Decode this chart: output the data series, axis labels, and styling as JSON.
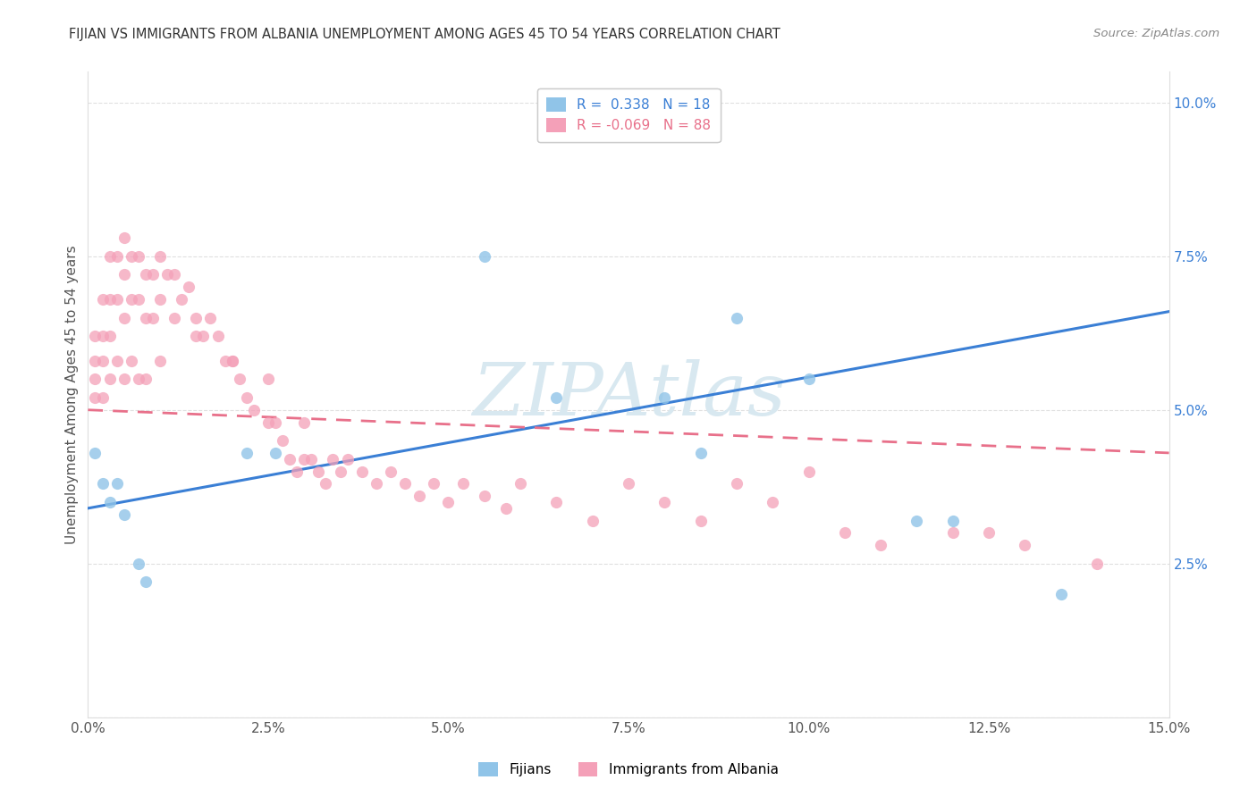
{
  "title": "FIJIAN VS IMMIGRANTS FROM ALBANIA UNEMPLOYMENT AMONG AGES 45 TO 54 YEARS CORRELATION CHART",
  "source": "Source: ZipAtlas.com",
  "ylabel": "Unemployment Among Ages 45 to 54 years",
  "legend_label_1": "Fijians",
  "legend_label_2": "Immigrants from Albania",
  "R1": 0.338,
  "N1": 18,
  "R2": -0.069,
  "N2": 88,
  "color1": "#90c4e8",
  "color2": "#f4a0b8",
  "trendline1_color": "#3a7fd5",
  "trendline2_color": "#e8708a",
  "xlim": [
    0.0,
    0.15
  ],
  "ylim": [
    0.0,
    0.105
  ],
  "xtick_positions": [
    0.0,
    0.025,
    0.05,
    0.075,
    0.1,
    0.125,
    0.15
  ],
  "xticklabels": [
    "0.0%",
    "2.5%",
    "5.0%",
    "7.5%",
    "10.0%",
    "12.5%",
    "15.0%"
  ],
  "ytick_positions": [
    0.0,
    0.025,
    0.05,
    0.075,
    0.1
  ],
  "ytick_labels": [
    "",
    "2.5%",
    "5.0%",
    "7.5%",
    "10.0%"
  ],
  "fijian_x": [
    0.001,
    0.002,
    0.003,
    0.004,
    0.005,
    0.007,
    0.008,
    0.022,
    0.026,
    0.055,
    0.065,
    0.08,
    0.085,
    0.09,
    0.1,
    0.115,
    0.12,
    0.135
  ],
  "fijian_y": [
    0.043,
    0.038,
    0.035,
    0.038,
    0.033,
    0.025,
    0.022,
    0.043,
    0.043,
    0.075,
    0.052,
    0.052,
    0.043,
    0.065,
    0.055,
    0.032,
    0.032,
    0.02
  ],
  "albania_x": [
    0.001,
    0.001,
    0.001,
    0.001,
    0.002,
    0.002,
    0.002,
    0.002,
    0.003,
    0.003,
    0.003,
    0.003,
    0.004,
    0.004,
    0.004,
    0.005,
    0.005,
    0.005,
    0.005,
    0.006,
    0.006,
    0.006,
    0.007,
    0.007,
    0.007,
    0.008,
    0.008,
    0.008,
    0.009,
    0.009,
    0.01,
    0.01,
    0.01,
    0.011,
    0.012,
    0.012,
    0.013,
    0.014,
    0.015,
    0.016,
    0.017,
    0.018,
    0.019,
    0.02,
    0.021,
    0.022,
    0.023,
    0.025,
    0.025,
    0.026,
    0.027,
    0.028,
    0.029,
    0.03,
    0.03,
    0.031,
    0.032,
    0.033,
    0.034,
    0.035,
    0.036,
    0.038,
    0.04,
    0.042,
    0.044,
    0.046,
    0.048,
    0.05,
    0.052,
    0.055,
    0.058,
    0.06,
    0.065,
    0.07,
    0.075,
    0.08,
    0.085,
    0.09,
    0.095,
    0.1,
    0.105,
    0.11,
    0.12,
    0.125,
    0.13,
    0.14,
    0.015,
    0.02
  ],
  "albania_y": [
    0.062,
    0.058,
    0.055,
    0.052,
    0.068,
    0.062,
    0.058,
    0.052,
    0.075,
    0.068,
    0.062,
    0.055,
    0.075,
    0.068,
    0.058,
    0.078,
    0.072,
    0.065,
    0.055,
    0.075,
    0.068,
    0.058,
    0.075,
    0.068,
    0.055,
    0.072,
    0.065,
    0.055,
    0.072,
    0.065,
    0.075,
    0.068,
    0.058,
    0.072,
    0.072,
    0.065,
    0.068,
    0.07,
    0.065,
    0.062,
    0.065,
    0.062,
    0.058,
    0.058,
    0.055,
    0.052,
    0.05,
    0.055,
    0.048,
    0.048,
    0.045,
    0.042,
    0.04,
    0.048,
    0.042,
    0.042,
    0.04,
    0.038,
    0.042,
    0.04,
    0.042,
    0.04,
    0.038,
    0.04,
    0.038,
    0.036,
    0.038,
    0.035,
    0.038,
    0.036,
    0.034,
    0.038,
    0.035,
    0.032,
    0.038,
    0.035,
    0.032,
    0.038,
    0.035,
    0.04,
    0.03,
    0.028,
    0.03,
    0.03,
    0.028,
    0.025,
    0.062,
    0.058
  ],
  "trendline1_x0": 0.0,
  "trendline1_y0": 0.034,
  "trendline1_x1": 0.15,
  "trendline1_y1": 0.066,
  "trendline2_x0": 0.0,
  "trendline2_y0": 0.05,
  "trendline2_x1": 0.15,
  "trendline2_y1": 0.043,
  "watermark": "ZIPAtlas",
  "watermark_color": "#d8e8f0",
  "background_color": "#ffffff",
  "grid_color": "#e0e0e0"
}
